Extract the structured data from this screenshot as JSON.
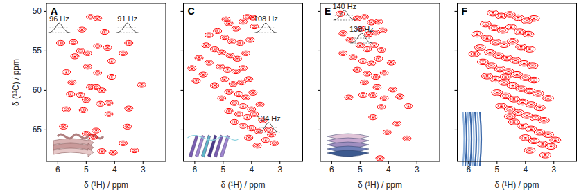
{
  "chart_data": [
    {
      "type": "scatter",
      "title": "A",
      "x_label": "δ (¹H) / ppm",
      "y_label": "δ (¹³C) / ppm",
      "xlim": [
        6.4,
        2.2
      ],
      "ylim": [
        49,
        69
      ],
      "xticks": [
        6,
        5,
        4,
        3
      ],
      "yticks": [
        50,
        55,
        60,
        65
      ],
      "color": "#ff0000",
      "marker": "ellipse",
      "annotations": [
        {
          "text": "96 Hz",
          "x": 5.95,
          "y": 51.3
        },
        {
          "text": "91 Hz",
          "x": 3.55,
          "y": 51.3
        }
      ],
      "x": [
        4.85,
        4.6,
        5.15,
        4.35,
        5.45,
        4.6,
        4.25,
        5.2,
        4.95,
        5.4,
        4.1,
        3.7,
        4.95,
        5.7,
        4.6,
        5.5,
        4.85,
        4.65,
        4.45,
        4.1,
        3.05,
        5.55,
        5.2,
        5.0,
        4.5,
        4.2,
        3.5,
        5.1,
        5.7,
        4.2,
        3.55,
        4.65,
        5.0,
        5.8,
        4.75,
        3.7,
        4.45,
        4.05,
        3.3,
        5.9,
        3.5
      ],
      "values": [
        50.7,
        50.9,
        52.3,
        52.6,
        53.9,
        54.4,
        54.6,
        55.0,
        55.3,
        55.7,
        56.3,
        55.3,
        57.0,
        57.7,
        57.8,
        59.0,
        59.6,
        59.6,
        60.0,
        58.3,
        59.3,
        60.5,
        60.6,
        61.2,
        61.7,
        61.6,
        62.3,
        62.5,
        62.4,
        63.0,
        64.6,
        65.1,
        65.5,
        64.6,
        65.9,
        66.7,
        67.7,
        67.9,
        67.6,
        54.0,
        54.0
      ]
    },
    {
      "type": "scatter",
      "title": "C",
      "x_label": "δ (¹H) / ppm",
      "xlim": [
        6.4,
        2.2
      ],
      "ylim": [
        49,
        69
      ],
      "xticks": [
        6,
        5,
        4,
        3
      ],
      "yticks": [
        50,
        55,
        60,
        65
      ],
      "tick_labels": "x",
      "color": "#ff0000",
      "marker": "ellipse",
      "annotations": [
        {
          "text": "108 Hz",
          "x": 3.5,
          "y": 51.3
        },
        {
          "text": "134 Hz",
          "x": 3.4,
          "y": 63.9
        }
      ],
      "x": [
        4.15,
        3.95,
        4.3,
        3.9,
        4.8,
        4.55,
        5.2,
        5.5,
        4.95,
        4.7,
        4.4,
        4.05,
        5.6,
        5.3,
        5.05,
        4.75,
        4.5,
        4.2,
        5.85,
        5.5,
        5.1,
        4.85,
        4.55,
        4.3,
        5.7,
        4.95,
        4.65,
        4.35,
        4.1,
        5.3,
        4.8,
        4.45,
        4.2,
        3.95,
        5.05,
        4.6,
        4.3,
        4.0,
        3.7,
        4.8,
        4.45,
        4.15,
        3.9,
        3.6,
        4.6,
        4.3,
        4.0,
        3.75,
        3.4,
        3.5,
        3.2,
        4.1,
        3.8,
        3.3,
        6.1,
        5.95,
        4.9
      ],
      "values": [
        50.7,
        50.8,
        51.3,
        51.9,
        51.5,
        52.2,
        52.5,
        53.0,
        53.3,
        53.8,
        54.0,
        53.6,
        54.3,
        54.8,
        55.2,
        55.6,
        56.0,
        55.3,
        55.9,
        56.5,
        57.0,
        57.4,
        57.6,
        57.2,
        58.0,
        58.6,
        59.2,
        59.0,
        58.6,
        59.4,
        60.2,
        60.5,
        60.9,
        60.3,
        61.0,
        61.6,
        62.0,
        62.4,
        61.8,
        62.6,
        63.0,
        63.4,
        63.0,
        63.8,
        64.0,
        64.5,
        64.8,
        65.2,
        65.0,
        66.3,
        66.7,
        66.0,
        67.0,
        65.6,
        57.2,
        58.8,
        51.0
      ]
    },
    {
      "type": "scatter",
      "title": "E",
      "x_label": "δ (¹H) / ppm",
      "xlim": [
        6.4,
        2.2
      ],
      "ylim": [
        49,
        69
      ],
      "xticks": [
        6,
        5,
        4,
        3
      ],
      "yticks": [
        50,
        55,
        60,
        65
      ],
      "tick_labels": "x",
      "color": "#ff0000",
      "marker": "ellipse",
      "annotations": [
        {
          "text": "140 Hz",
          "x": 5.55,
          "y": 49.7
        },
        {
          "text": "138 Hz",
          "x": 4.95,
          "y": 52.6
        }
      ],
      "x": [
        5.7,
        5.6,
        5.1,
        4.85,
        4.6,
        4.35,
        4.95,
        4.7,
        4.45,
        4.2,
        5.35,
        5.0,
        4.75,
        4.5,
        4.25,
        5.6,
        5.25,
        4.9,
        4.6,
        4.35,
        3.9,
        5.1,
        4.75,
        4.45,
        4.15,
        4.85,
        4.4,
        3.85,
        4.55,
        4.15,
        3.6,
        4.9,
        4.25,
        3.3,
        4.55,
        3.7,
        4.05,
        3.35,
        4.3,
        5.4
      ],
      "values": [
        50.3,
        52.8,
        50.9,
        50.7,
        51.4,
        51.3,
        52.2,
        52.9,
        52.7,
        52.4,
        53.6,
        54.3,
        54.8,
        54.3,
        54.9,
        55.3,
        55.8,
        56.3,
        56.6,
        56.0,
        56.5,
        57.4,
        57.9,
        58.3,
        57.8,
        59.0,
        59.6,
        59.9,
        60.6,
        61.0,
        60.8,
        60.6,
        62.1,
        62.0,
        63.4,
        64.2,
        65.3,
        66.1,
        68.6,
        60.9
      ]
    },
    {
      "type": "scatter",
      "title": "F",
      "x_label": "δ (¹H) / ppm",
      "xlim": [
        6.4,
        2.2
      ],
      "ylim": [
        49,
        69
      ],
      "xticks": [
        6,
        5,
        4,
        3
      ],
      "yticks": [
        50,
        55,
        60,
        65
      ],
      "tick_labels": "x",
      "color": "#ff0000",
      "marker": "ellipse",
      "x": [
        5.15,
        4.85,
        4.55,
        4.25,
        3.95,
        3.7,
        5.4,
        5.1,
        4.8,
        4.5,
        4.2,
        3.9,
        5.7,
        5.35,
        5.05,
        4.75,
        4.45,
        4.15,
        3.85,
        5.6,
        5.25,
        4.95,
        4.65,
        4.35,
        4.05,
        3.75,
        5.5,
        5.2,
        4.9,
        4.6,
        4.3,
        4.0,
        3.7,
        5.35,
        5.05,
        4.75,
        4.45,
        4.15,
        3.85,
        3.55,
        5.0,
        4.7,
        4.4,
        4.1,
        3.8,
        3.5,
        4.85,
        4.55,
        4.25,
        3.95,
        3.65,
        3.35,
        4.4,
        4.1,
        3.8,
        3.5,
        3.2,
        4.0,
        3.7,
        3.4,
        3.1,
        3.85,
        3.3,
        2.95,
        4.7,
        3.2,
        5.8,
        4.55
      ],
      "values": [
        50.2,
        50.6,
        50.4,
        50.8,
        51.2,
        50.9,
        51.6,
        52.1,
        52.4,
        52.0,
        52.6,
        52.9,
        52.9,
        53.4,
        53.9,
        54.2,
        53.8,
        54.5,
        54.8,
        54.6,
        55.2,
        55.6,
        55.9,
        56.2,
        56.6,
        56.9,
        56.4,
        56.9,
        57.3,
        57.6,
        58.0,
        58.4,
        58.7,
        58.2,
        58.6,
        59.0,
        59.4,
        59.8,
        60.1,
        60.4,
        60.3,
        60.7,
        61.1,
        61.5,
        61.8,
        62.2,
        62.0,
        62.4,
        62.8,
        63.2,
        63.5,
        63.8,
        64.0,
        64.5,
        64.9,
        65.3,
        65.6,
        66.0,
        66.4,
        66.8,
        67.1,
        67.6,
        68.2,
        66.3,
        58.3,
        61.0,
        55.4,
        63.3
      ]
    }
  ]
}
